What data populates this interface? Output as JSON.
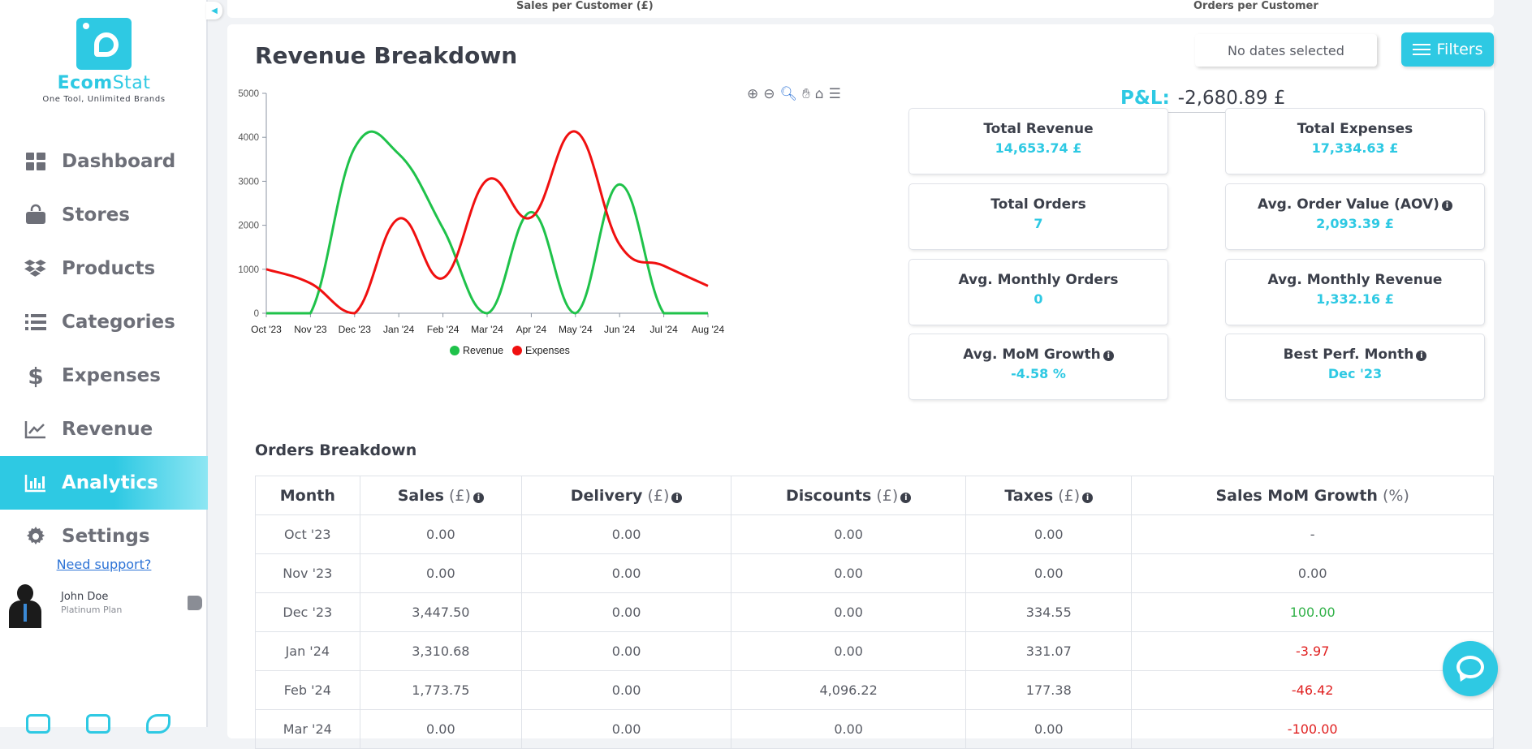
{
  "brand": {
    "name_prefix": "Ecom",
    "name_suffix": "Stat",
    "tagline": "One Tool, Unlimited Brands",
    "accent": "#2ec9e3"
  },
  "sidebar": {
    "items": [
      {
        "label": "Dashboard",
        "icon": "dashboard-icon",
        "active": false
      },
      {
        "label": "Stores",
        "icon": "store-bag-icon",
        "active": false
      },
      {
        "label": "Products",
        "icon": "dropbox-boxes-icon",
        "active": false
      },
      {
        "label": "Categories",
        "icon": "list-icon",
        "active": false
      },
      {
        "label": "Expenses",
        "icon": "dollar-icon",
        "active": false
      },
      {
        "label": "Revenue",
        "icon": "line-chart-icon",
        "active": false
      },
      {
        "label": "Analytics",
        "icon": "bar-chart-icon",
        "active": true
      },
      {
        "label": "Settings",
        "icon": "gear-icon",
        "active": false
      }
    ],
    "support_link": "Need support?",
    "user": {
      "name": "John Doe",
      "plan": "Platinum Plan"
    }
  },
  "top_strip": {
    "left_label": "Sales per Customer (£)",
    "right_label": "Orders per Customer"
  },
  "revenue": {
    "title": "Revenue Breakdown",
    "date_filter": "No dates selected",
    "filters_label": "Filters",
    "pl_label": "P&L:",
    "pl_value": "-2,680.89 £"
  },
  "stats": [
    {
      "label": "Total Revenue",
      "value": "14,653.74 £",
      "info": false
    },
    {
      "label": "Total Expenses",
      "value": "17,334.63 £",
      "info": false
    },
    {
      "label": "Total Orders",
      "value": "7",
      "info": false
    },
    {
      "label": "Avg. Order Value (AOV)",
      "value": "2,093.39 £",
      "info": true
    },
    {
      "label": "Avg. Monthly Orders",
      "value": "0",
      "info": false
    },
    {
      "label": "Avg. Monthly Revenue",
      "value": "1,332.16 £",
      "info": false
    },
    {
      "label": "Avg. MoM Growth",
      "value": "-4.58 %",
      "info": true
    },
    {
      "label": "Best Perf. Month",
      "value": "Dec '23",
      "info": true
    }
  ],
  "chart_data": {
    "type": "line",
    "categories": [
      "Oct '23",
      "Nov '23",
      "Dec '23",
      "Jan '24",
      "Feb '24",
      "Mar '24",
      "Apr '24",
      "May '24",
      "Jun '24",
      "Jul '24",
      "Aug '24"
    ],
    "series": [
      {
        "name": "Revenue",
        "color": "#1fc24a",
        "values": [
          0,
          0,
          3760,
          3620,
          1930,
          0,
          2300,
          0,
          2930,
          0,
          0
        ]
      },
      {
        "name": "Expenses",
        "color": "#f01010",
        "values": [
          1000,
          680,
          0,
          2150,
          800,
          3030,
          2180,
          4130,
          1560,
          1080,
          620
        ]
      }
    ],
    "ylim": [
      0,
      5000
    ],
    "yticks": [
      "0",
      "1000",
      "2000",
      "3000",
      "4000",
      "5000"
    ],
    "legend": "bottom"
  },
  "orders": {
    "title": "Orders Breakdown",
    "headers": [
      {
        "label": "Month",
        "unit": "",
        "info": false
      },
      {
        "label": "Sales",
        "unit": "(£)",
        "info": true
      },
      {
        "label": "Delivery",
        "unit": "(£)",
        "info": true
      },
      {
        "label": "Discounts",
        "unit": "(£)",
        "info": true
      },
      {
        "label": "Taxes",
        "unit": "(£)",
        "info": true
      },
      {
        "label": "Sales MoM Growth",
        "unit": "(%)",
        "info": false
      }
    ],
    "rows": [
      [
        "Oct '23",
        "0.00",
        "0.00",
        "0.00",
        "0.00",
        "-"
      ],
      [
        "Nov '23",
        "0.00",
        "0.00",
        "0.00",
        "0.00",
        "0.00"
      ],
      [
        "Dec '23",
        "3,447.50",
        "0.00",
        "0.00",
        "334.55",
        "100.00"
      ],
      [
        "Jan '24",
        "3,310.68",
        "0.00",
        "0.00",
        "331.07",
        "-3.97"
      ],
      [
        "Feb '24",
        "1,773.75",
        "0.00",
        "4,096.22",
        "177.38",
        "-46.42"
      ],
      [
        "Mar '24",
        "0.00",
        "0.00",
        "0.00",
        "0.00",
        "-100.00"
      ]
    ]
  }
}
